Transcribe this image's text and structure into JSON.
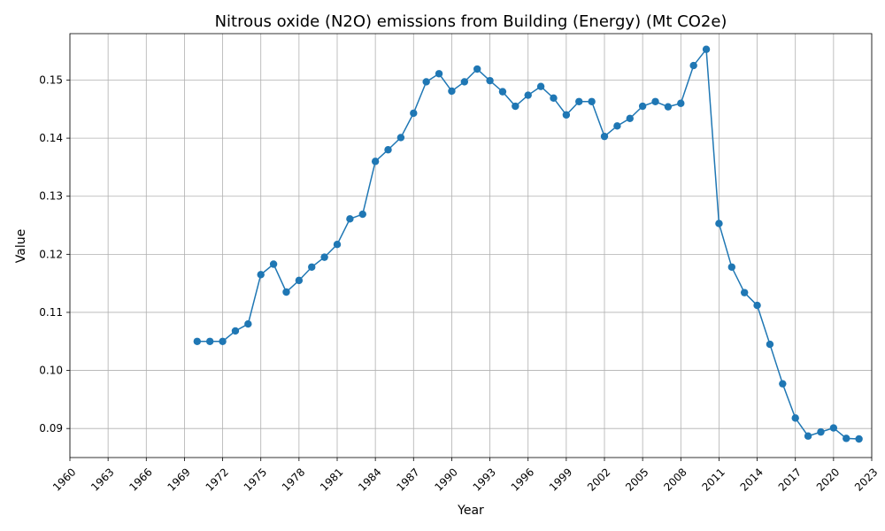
{
  "chart_data": {
    "type": "line",
    "title": "Nitrous oxide (N2O) emissions from Building (Energy) (Mt CO2e)",
    "xlabel": "Year",
    "ylabel": "Value",
    "xlim": [
      1960,
      2023
    ],
    "ylim": [
      0.085,
      0.158
    ],
    "grid": true,
    "x_ticks": [
      1960,
      1963,
      1966,
      1969,
      1972,
      1975,
      1978,
      1981,
      1984,
      1987,
      1990,
      1993,
      1996,
      1999,
      2002,
      2005,
      2008,
      2011,
      2014,
      2017,
      2020,
      2023
    ],
    "y_ticks": [
      0.09,
      0.1,
      0.11,
      0.12,
      0.13,
      0.14,
      0.15
    ],
    "y_tick_labels": [
      "0.09",
      "0.10",
      "0.11",
      "0.12",
      "0.13",
      "0.14",
      "0.15"
    ],
    "x_tick_labels": [
      "1960",
      "1963",
      "1966",
      "1969",
      "1972",
      "1975",
      "1978",
      "1981",
      "1984",
      "1987",
      "1990",
      "1993",
      "1996",
      "1999",
      "2002",
      "2005",
      "2008",
      "2011",
      "2014",
      "2017",
      "2020",
      "2023"
    ],
    "series": [
      {
        "color": "#1f77b4",
        "marker": "circle",
        "x": [
          1970,
          1971,
          1972,
          1973,
          1974,
          1975,
          1976,
          1977,
          1978,
          1979,
          1980,
          1981,
          1982,
          1983,
          1984,
          1985,
          1986,
          1987,
          1988,
          1989,
          1990,
          1991,
          1992,
          1993,
          1994,
          1995,
          1996,
          1997,
          1998,
          1999,
          2000,
          2001,
          2002,
          2003,
          2004,
          2005,
          2006,
          2007,
          2008,
          2009,
          2010,
          2011,
          2012,
          2013,
          2014,
          2015,
          2016,
          2017,
          2018,
          2019,
          2020,
          2021,
          2022
        ],
        "values": [
          0.105,
          0.105,
          0.105,
          0.1068,
          0.108,
          0.1165,
          0.1183,
          0.1135,
          0.1155,
          0.1178,
          0.1195,
          0.1217,
          0.1261,
          0.1269,
          0.136,
          0.138,
          0.1401,
          0.1443,
          0.1497,
          0.1511,
          0.1481,
          0.1497,
          0.1519,
          0.1499,
          0.148,
          0.1455,
          0.1474,
          0.1489,
          0.1469,
          0.144,
          0.1463,
          0.1463,
          0.1403,
          0.1421,
          0.1434,
          0.1455,
          0.1463,
          0.1454,
          0.146,
          0.1525,
          0.1553,
          0.1253,
          0.1178,
          0.1134,
          0.1112,
          0.1045,
          0.0977,
          0.0918,
          0.0887,
          0.0894,
          0.0901,
          0.0883,
          0.0882
        ]
      }
    ]
  }
}
